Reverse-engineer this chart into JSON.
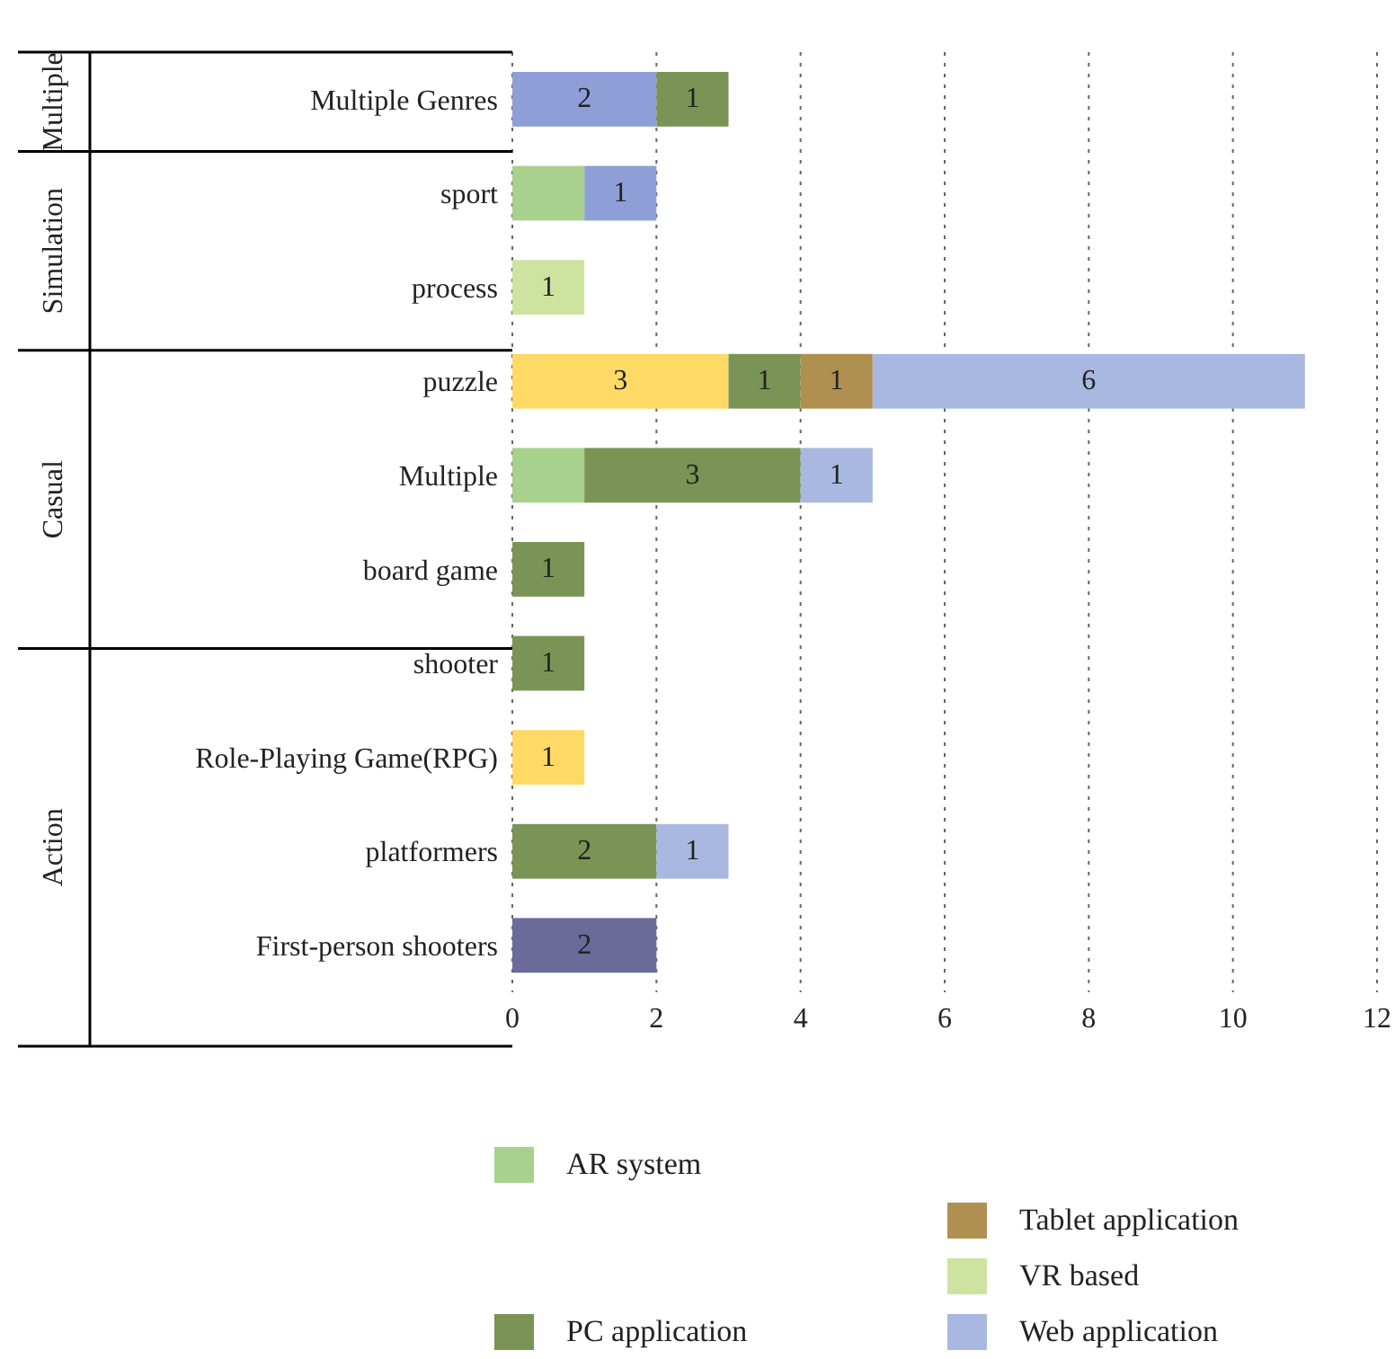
{
  "chart_data": {
    "type": "bar",
    "orientation": "horizontal",
    "stacked": true,
    "categories": [
      "Multiple Genres",
      "sport",
      "process",
      "puzzle",
      "Multiple",
      "board game",
      "shooter",
      "Role-Playing Game(RPG)",
      "platformers",
      "First-person shooters"
    ],
    "series": [
      {
        "name": "AR system",
        "color": "#a9d18e",
        "values": [
          null,
          1,
          null,
          null,
          1,
          null,
          null,
          null,
          null,
          null
        ],
        "value_labels": [
          null,
          null,
          null,
          null,
          null,
          null,
          null,
          null,
          null,
          null
        ]
      },
      {
        "color": "#8e9fd8",
        "values": [
          2,
          1,
          null,
          null,
          null,
          null,
          null,
          null,
          null,
          null
        ],
        "value_labels": [
          "2",
          "1",
          null,
          null,
          null,
          null,
          null,
          null,
          null,
          null
        ]
      },
      {
        "color": "#ffd966",
        "values": [
          null,
          null,
          null,
          3,
          null,
          null,
          null,
          1,
          null,
          null
        ],
        "value_labels": [
          null,
          null,
          null,
          "3",
          null,
          null,
          null,
          "1",
          null,
          null
        ]
      },
      {
        "name": "PC application",
        "color": "#7a9455",
        "values": [
          1,
          null,
          null,
          1,
          3,
          1,
          1,
          null,
          2,
          null
        ],
        "value_labels": [
          "1",
          null,
          null,
          "1",
          "3",
          "1",
          "1",
          null,
          "2",
          null
        ]
      },
      {
        "color": "#6b6b9a",
        "values": [
          null,
          null,
          null,
          null,
          null,
          null,
          null,
          null,
          null,
          2
        ],
        "value_labels": [
          null,
          null,
          null,
          null,
          null,
          null,
          null,
          null,
          null,
          "2"
        ]
      },
      {
        "name": "Tablet application",
        "color": "#b09050",
        "values": [
          null,
          null,
          null,
          1,
          null,
          null,
          null,
          null,
          null,
          null
        ],
        "value_labels": [
          null,
          null,
          null,
          "1",
          null,
          null,
          null,
          null,
          null,
          null
        ]
      },
      {
        "name": "VR based",
        "color": "#cfe3a0",
        "values": [
          null,
          null,
          1,
          null,
          null,
          null,
          null,
          null,
          null,
          null
        ],
        "value_labels": [
          null,
          null,
          "1",
          null,
          null,
          null,
          null,
          null,
          null,
          null
        ]
      },
      {
        "name": "Web application",
        "color": "#a9b8e0",
        "values": [
          null,
          null,
          null,
          6,
          1,
          null,
          null,
          null,
          1,
          null
        ],
        "value_labels": [
          null,
          null,
          null,
          "6",
          "1",
          null,
          null,
          null,
          "1",
          null
        ]
      }
    ],
    "xlim": [
      0,
      12
    ],
    "xticks": [
      0,
      2,
      4,
      6,
      8,
      10,
      12
    ],
    "grid": "x",
    "line_style": "dotted",
    "legend": "bottom",
    "annotations": [
      "Multiple",
      "Simulation",
      "Casual",
      "Action"
    ]
  }
}
